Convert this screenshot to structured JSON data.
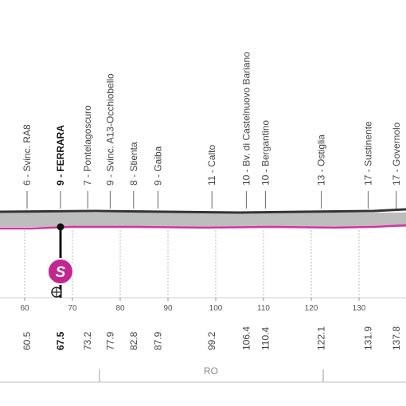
{
  "chart_data": {
    "type": "area",
    "title": "",
    "xlabel": "",
    "ylabel": "",
    "xlim": [
      56,
      140
    ],
    "axis_ticks": [
      "60",
      "70",
      "80",
      "90",
      "100",
      "110",
      "120",
      "130"
    ],
    "places": [
      {
        "km": 60.5,
        "name": "6 - Svinc. RA8",
        "km_label": "60.5",
        "bold": false
      },
      {
        "km": 67.5,
        "name": "9 - FERRARA",
        "km_label": "67.5",
        "bold": true
      },
      {
        "km": 73.2,
        "name": "7 - Pontelagoscuro",
        "km_label": "73.2",
        "bold": false
      },
      {
        "km": 77.9,
        "name": "9 - Svinc. A13-Occhiobello",
        "km_label": "77.9",
        "bold": false
      },
      {
        "km": 82.8,
        "name": "8 - Stienta",
        "km_label": "82.8",
        "bold": false
      },
      {
        "km": 87.9,
        "name": "9 - Gaiba",
        "km_label": "87.9",
        "bold": false
      },
      {
        "km": 99.2,
        "name": "11 - Calto",
        "km_label": "99.2",
        "bold": false
      },
      {
        "km": 106.4,
        "name": "10 - Bv. di Castelnuovo Bariano",
        "km_label": "106.4",
        "bold": false
      },
      {
        "km": 110.4,
        "name": "10 - Bergantino",
        "km_label": "110.4",
        "bold": false
      },
      {
        "km": 122.1,
        "name": "13 - Ostiglia",
        "km_label": "122.1",
        "bold": false
      },
      {
        "km": 131.9,
        "name": "17 - Sustinente",
        "km_label": "131.9",
        "bold": false
      },
      {
        "km": 137.8,
        "name": "17 - Governolo",
        "km_label": "137.8",
        "bold": false
      }
    ],
    "marker": {
      "km": 67.5,
      "label": "S",
      "color": "#c2268f"
    },
    "region_label": "RO",
    "colors": {
      "profile_fill": "#e9e9e9",
      "profile_line": "#d6339e",
      "ground": "#bdbdbd",
      "text": "#444444",
      "bold_text": "#111111"
    }
  }
}
